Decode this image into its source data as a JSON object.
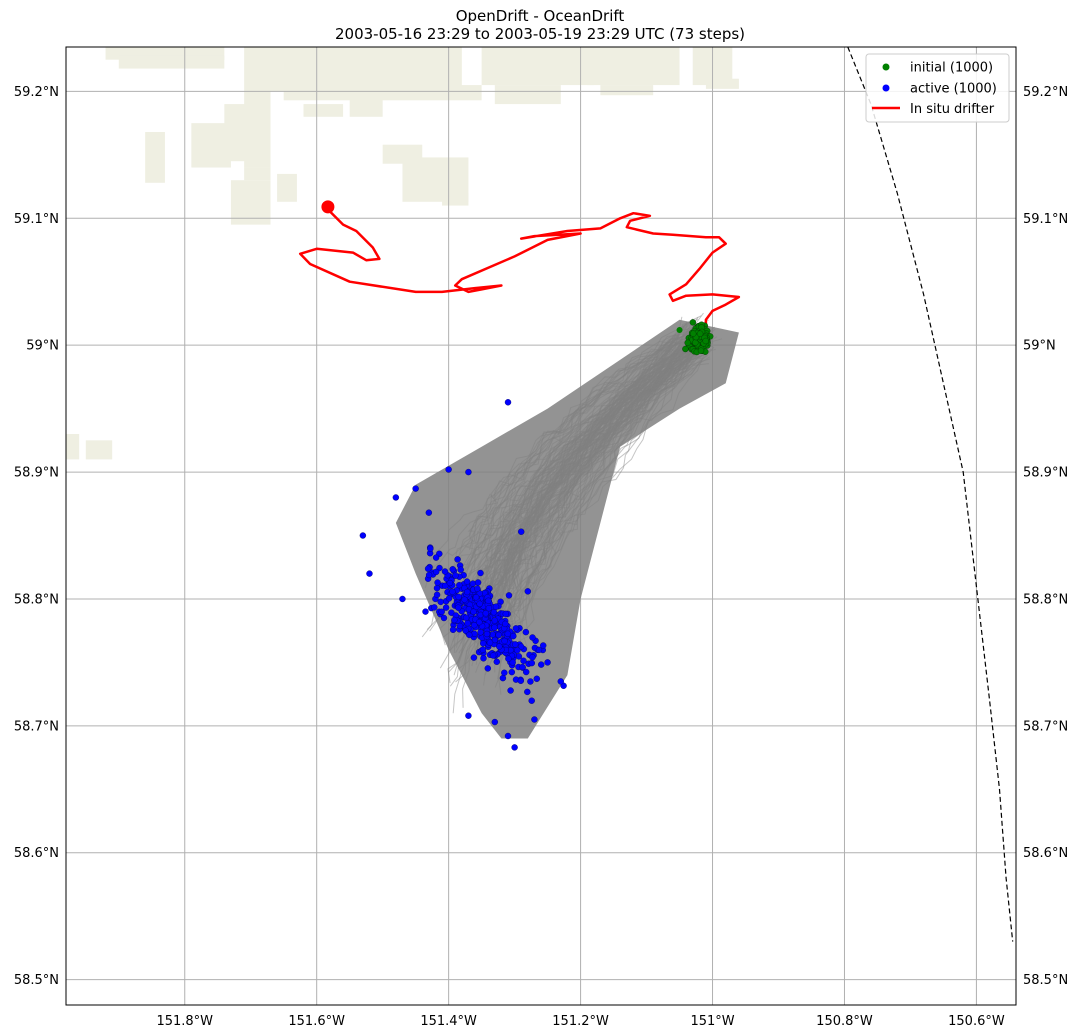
{
  "title": {
    "line1": "OpenDrift - OceanDrift",
    "line2": "2003-05-16 23:29 to 2003-05-19 23:29 UTC (73 steps)"
  },
  "legend": {
    "placement": "top-right",
    "items": [
      {
        "label": "initial (1000)",
        "color": "#008000",
        "marker": "dot"
      },
      {
        "label": "active (1000)",
        "color": "#0000ff",
        "marker": "dot"
      },
      {
        "label": "In situ drifter",
        "color": "#ff0000",
        "marker": "line"
      }
    ]
  },
  "chart_data": {
    "type": "scatter",
    "projection": "map",
    "xlim": [
      -151.98,
      -150.54
    ],
    "ylim": [
      58.48,
      59.235
    ],
    "grid": true,
    "x_ticks": [
      {
        "value": -151.8,
        "label": "151.8°W"
      },
      {
        "value": -151.6,
        "label": "151.6°W"
      },
      {
        "value": -151.4,
        "label": "151.4°W"
      },
      {
        "value": -151.2,
        "label": "151.2°W"
      },
      {
        "value": -151.0,
        "label": "151°W"
      },
      {
        "value": -150.8,
        "label": "150.8°W"
      },
      {
        "value": -150.6,
        "label": "150.6°W"
      }
    ],
    "y_ticks": [
      {
        "value": 58.5,
        "label": "58.5°N"
      },
      {
        "value": 58.6,
        "label": "58.6°N"
      },
      {
        "value": 58.7,
        "label": "58.7°N"
      },
      {
        "value": 58.8,
        "label": "58.8°N"
      },
      {
        "value": 58.9,
        "label": "58.9°N"
      },
      {
        "value": 59.0,
        "label": "59°N"
      },
      {
        "value": 59.1,
        "label": "59.1°N"
      },
      {
        "value": 59.2,
        "label": "59.2°N"
      }
    ],
    "colors": {
      "land": "#efefe2",
      "trajectories": "#808080",
      "initial": "#008000",
      "active": "#0000ff",
      "drifter": "#ff0000",
      "boundary": "#000000",
      "grid": "#b0b0b0"
    },
    "initial_cluster": {
      "center": [
        -151.02,
        59.005
      ],
      "spread_lon": 0.02,
      "spread_lat": 0.013,
      "count": 1000
    },
    "active_cluster": {
      "count": 1000,
      "outliers": [
        [
          -151.31,
          58.955
        ],
        [
          -151.4,
          58.902
        ],
        [
          -151.37,
          58.9
        ],
        [
          -151.45,
          58.887
        ],
        [
          -151.48,
          58.88
        ],
        [
          -151.43,
          58.868
        ],
        [
          -151.47,
          58.8
        ],
        [
          -151.37,
          58.708
        ],
        [
          -151.33,
          58.703
        ],
        [
          -151.31,
          58.692
        ],
        [
          -151.3,
          58.683
        ],
        [
          -151.27,
          58.705
        ],
        [
          -151.23,
          58.735
        ],
        [
          -151.25,
          58.75
        ],
        [
          -151.28,
          58.806
        ],
        [
          -151.52,
          58.82
        ],
        [
          -151.53,
          58.85
        ],
        [
          -151.29,
          58.853
        ]
      ]
    },
    "trajectory_envelope": [
      [
        -151.05,
        59.02
      ],
      [
        -150.96,
        59.01
      ],
      [
        -150.98,
        58.97
      ],
      [
        -151.05,
        58.95
      ],
      [
        -151.14,
        58.92
      ],
      [
        -151.17,
        58.86
      ],
      [
        -151.2,
        58.8
      ],
      [
        -151.22,
        58.74
      ],
      [
        -151.28,
        58.69
      ],
      [
        -151.32,
        58.69
      ],
      [
        -151.35,
        58.71
      ],
      [
        -151.4,
        58.76
      ],
      [
        -151.45,
        58.82
      ],
      [
        -151.48,
        58.86
      ],
      [
        -151.45,
        58.89
      ],
      [
        -151.35,
        58.92
      ],
      [
        -151.25,
        58.95
      ],
      [
        -151.15,
        58.985
      ]
    ],
    "drifter_track": [
      [
        -151.585,
        59.108
      ],
      [
        -151.56,
        59.095
      ],
      [
        -151.54,
        59.09
      ],
      [
        -151.515,
        59.077
      ],
      [
        -151.505,
        59.068
      ],
      [
        -151.525,
        59.067
      ],
      [
        -151.545,
        59.073
      ],
      [
        -151.6,
        59.076
      ],
      [
        -151.625,
        59.072
      ],
      [
        -151.61,
        59.064
      ],
      [
        -151.55,
        59.05
      ],
      [
        -151.45,
        59.042
      ],
      [
        -151.41,
        59.042
      ],
      [
        -151.36,
        59.045
      ],
      [
        -151.32,
        59.047
      ],
      [
        -151.35,
        59.044
      ],
      [
        -151.37,
        59.042
      ],
      [
        -151.39,
        59.047
      ],
      [
        -151.38,
        59.052
      ],
      [
        -151.3,
        59.07
      ],
      [
        -151.25,
        59.083
      ],
      [
        -151.2,
        59.088
      ],
      [
        -151.27,
        59.086
      ],
      [
        -151.29,
        59.084
      ],
      [
        -151.22,
        59.09
      ],
      [
        -151.17,
        59.092
      ],
      [
        -151.14,
        59.1
      ],
      [
        -151.12,
        59.104
      ],
      [
        -151.095,
        59.102
      ],
      [
        -151.125,
        59.098
      ],
      [
        -151.13,
        59.093
      ],
      [
        -151.09,
        59.088
      ],
      [
        -151.06,
        59.087
      ],
      [
        -151.01,
        59.085
      ],
      [
        -150.99,
        59.085
      ],
      [
        -150.98,
        59.08
      ],
      [
        -151.0,
        59.073
      ],
      [
        -151.02,
        59.06
      ],
      [
        -151.04,
        59.048
      ],
      [
        -151.065,
        59.04
      ],
      [
        -151.06,
        59.035
      ],
      [
        -151.04,
        59.039
      ],
      [
        -151.0,
        59.04
      ],
      [
        -150.96,
        59.038
      ],
      [
        -150.98,
        59.032
      ],
      [
        -151.0,
        59.027
      ],
      [
        -151.01,
        59.02
      ],
      [
        -151.01,
        59.013
      ],
      [
        -151.005,
        59.008
      ]
    ],
    "drifter_start": [
      -151.583,
      59.109
    ],
    "land_patches": [
      [
        -151.92,
        59.235,
        0.18,
        0.01
      ],
      [
        -151.9,
        59.228,
        0.16,
        0.01
      ],
      [
        -151.71,
        59.235,
        0.33,
        0.035
      ],
      [
        -151.65,
        59.205,
        0.3,
        0.012
      ],
      [
        -151.35,
        59.235,
        0.17,
        0.03
      ],
      [
        -151.33,
        59.205,
        0.1,
        0.015
      ],
      [
        -151.19,
        59.235,
        0.14,
        0.03
      ],
      [
        -151.17,
        59.205,
        0.08,
        0.008
      ],
      [
        -151.03,
        59.235,
        0.06,
        0.03
      ],
      [
        -151.01,
        59.21,
        0.05,
        0.008
      ],
      [
        -151.74,
        59.19,
        0.07,
        0.045
      ],
      [
        -151.79,
        59.175,
        0.06,
        0.035
      ],
      [
        -151.86,
        59.168,
        0.03,
        0.04
      ],
      [
        -151.71,
        59.2,
        0.04,
        0.06
      ],
      [
        -151.62,
        59.19,
        0.06,
        0.01
      ],
      [
        -151.55,
        59.195,
        0.05,
        0.015
      ],
      [
        -151.5,
        59.158,
        0.06,
        0.015
      ],
      [
        -151.47,
        59.148,
        0.1,
        0.035
      ],
      [
        -151.41,
        59.12,
        0.04,
        0.01
      ],
      [
        -151.73,
        59.13,
        0.06,
        0.035
      ],
      [
        -151.71,
        59.14,
        0.04,
        0.01
      ],
      [
        -151.66,
        59.135,
        0.03,
        0.022
      ],
      [
        -151.95,
        58.925,
        0.04,
        0.015
      ],
      [
        -151.98,
        58.93,
        0.02,
        0.02
      ]
    ],
    "boundary_curve": [
      [
        -150.795,
        59.235
      ],
      [
        -150.76,
        59.19
      ],
      [
        -150.72,
        59.12
      ],
      [
        -150.68,
        59.04
      ],
      [
        -150.65,
        58.97
      ],
      [
        -150.62,
        58.9
      ],
      [
        -150.6,
        58.81
      ],
      [
        -150.58,
        58.72
      ],
      [
        -150.565,
        58.65
      ],
      [
        -150.555,
        58.58
      ],
      [
        -150.545,
        58.53
      ]
    ]
  }
}
